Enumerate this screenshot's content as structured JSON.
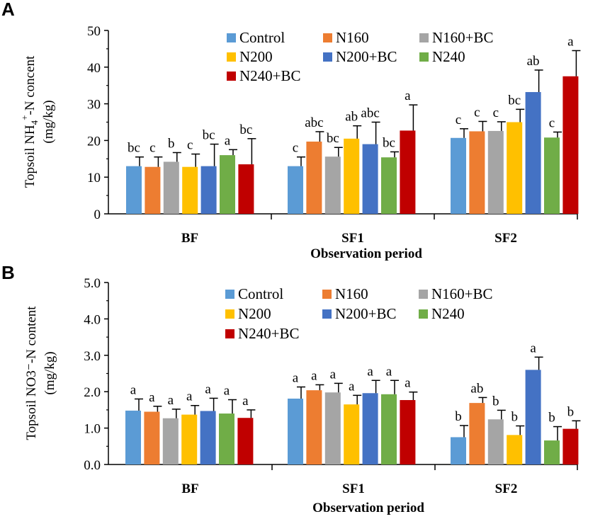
{
  "series_names": [
    "Control",
    "N160",
    "N160+BC",
    "N200",
    "N200+BC",
    "N240",
    "N240+BC"
  ],
  "colors": [
    "#5b9bd5",
    "#ed7d31",
    "#a5a5a5",
    "#ffc000",
    "#4472c4",
    "#70ad47",
    "#c00000"
  ],
  "chart_data": [
    {
      "type": "bar",
      "panel_label": "A",
      "title": "",
      "ylabel_line1_pre": "Topsoil NH",
      "ylabel_sub": "4",
      "ylabel_sup": "+",
      "ylabel_line1_post": "-N concent",
      "ylabel_line2": "(mg/kg)",
      "xlabel": "Observation period",
      "categories": [
        "BF",
        "SF1",
        "SF2"
      ],
      "ylim": [
        0,
        50
      ],
      "yticks": [
        "0",
        "10",
        "20",
        "30",
        "40",
        "50"
      ],
      "tick_values": [
        0,
        10,
        20,
        30,
        40,
        50
      ],
      "legend_position": "top-center",
      "series": [
        {
          "name": "Control",
          "values": [
            13,
            13,
            20.7
          ],
          "errors": [
            2.5,
            2.5,
            2.5
          ],
          "letters": [
            "bc",
            "c",
            "c"
          ]
        },
        {
          "name": "N160",
          "values": [
            12.8,
            19.7,
            22.5
          ],
          "errors": [
            2.7,
            2.7,
            2.7
          ],
          "letters": [
            "c",
            "abc",
            "c"
          ]
        },
        {
          "name": "N160+BC",
          "values": [
            14.2,
            15.6,
            22.6
          ],
          "errors": [
            2.5,
            2.5,
            2.5
          ],
          "letters": [
            "b",
            "bc",
            "c"
          ]
        },
        {
          "name": "N200",
          "values": [
            12.8,
            20.5,
            25
          ],
          "errors": [
            3.5,
            3.5,
            3.5
          ],
          "letters": [
            "c",
            "ab",
            "bc"
          ]
        },
        {
          "name": "N200+BC",
          "values": [
            13,
            19,
            33.2
          ],
          "errors": [
            6,
            6,
            6
          ],
          "letters": [
            "bc",
            "abc",
            "ab"
          ]
        },
        {
          "name": "N240",
          "values": [
            16,
            15.4,
            20.8
          ],
          "errors": [
            1.5,
            1.5,
            1.5
          ],
          "letters": [
            "a",
            "bc",
            "c"
          ]
        },
        {
          "name": "N240+BC",
          "values": [
            13.5,
            22.7,
            37.5
          ],
          "errors": [
            7,
            7,
            7
          ],
          "letters": [
            "bc",
            "a",
            "a"
          ]
        }
      ]
    },
    {
      "type": "bar",
      "panel_label": "B",
      "title": "",
      "ylabel_line1": "Topsoil NO3⁻-N content",
      "ylabel_line2": "(mg/kg)",
      "xlabel": "Observation period",
      "categories": [
        "BF",
        "SF1",
        "SF2"
      ],
      "ylim": [
        0,
        5
      ],
      "yticks": [
        "0.0",
        "1.0",
        "2.0",
        "3.0",
        "4.0",
        "5.0"
      ],
      "tick_values": [
        0,
        1,
        2,
        3,
        4,
        5
      ],
      "legend_position": "top-center",
      "series": [
        {
          "name": "Control",
          "values": [
            1.48,
            1.81,
            0.75
          ],
          "errors": [
            0.32,
            0.32,
            0.32
          ],
          "letters": [
            "a",
            "a",
            "b"
          ]
        },
        {
          "name": "N160",
          "values": [
            1.45,
            2.04,
            1.69
          ],
          "errors": [
            0.15,
            0.15,
            0.15
          ],
          "letters": [
            "a",
            "a",
            "ab"
          ]
        },
        {
          "name": "N160+BC",
          "values": [
            1.27,
            1.98,
            1.24
          ],
          "errors": [
            0.25,
            0.25,
            0.25
          ],
          "letters": [
            "a",
            "a",
            "b"
          ]
        },
        {
          "name": "N200",
          "values": [
            1.37,
            1.65,
            0.81
          ],
          "errors": [
            0.25,
            0.25,
            0.25
          ],
          "letters": [
            "a",
            "a",
            "b"
          ]
        },
        {
          "name": "N200+BC",
          "values": [
            1.47,
            1.96,
            2.6
          ],
          "errors": [
            0.35,
            0.35,
            0.35
          ],
          "letters": [
            "a",
            "a",
            "a"
          ]
        },
        {
          "name": "N240",
          "values": [
            1.4,
            1.93,
            0.66
          ],
          "errors": [
            0.38,
            0.38,
            0.38
          ],
          "letters": [
            "a",
            "a",
            "b"
          ]
        },
        {
          "name": "N240+BC",
          "values": [
            1.28,
            1.77,
            0.98
          ],
          "errors": [
            0.22,
            0.22,
            0.22
          ],
          "letters": [
            "a",
            "a",
            "b"
          ]
        }
      ]
    }
  ]
}
